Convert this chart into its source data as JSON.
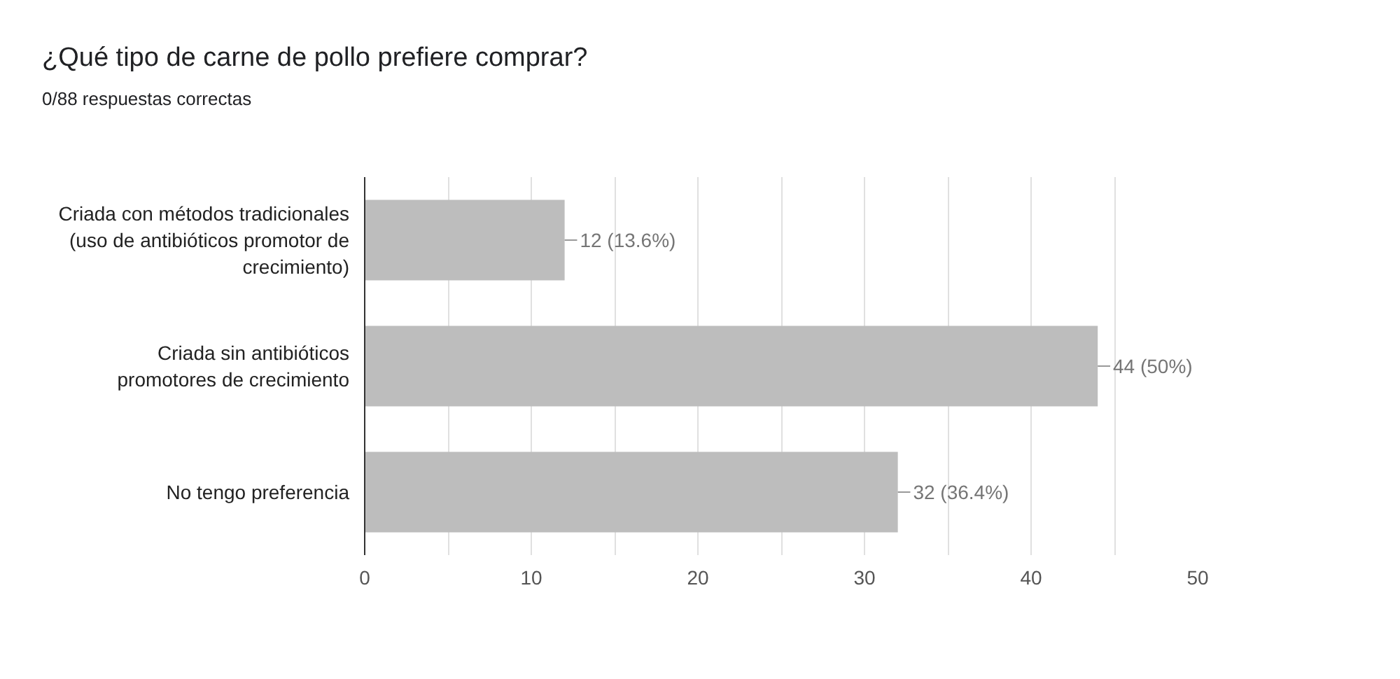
{
  "chart_data": {
    "type": "bar",
    "orientation": "horizontal",
    "title": "¿Qué tipo de carne de pollo prefiere comprar?",
    "subtitle": "0/88 respuestas correctas",
    "categories": [
      "Criada con métodos tradicionales (uso de antibióticos promotor de crecimiento)",
      "Criada sin antibióticos promotores de crecimiento",
      "No tengo preferencia"
    ],
    "values": [
      12,
      44,
      32
    ],
    "color": "#bdbdbd",
    "value_labels": [
      "12 (13.6%)",
      "44 (50%)",
      "32 (36.4%)"
    ],
    "xlim": [
      0,
      50
    ],
    "xticks": [
      0,
      {
        "value": 5,
        "label": null
      },
      10,
      {
        "value": 15,
        "label": null
      },
      20,
      {
        "value": 25,
        "label": null
      },
      30,
      {
        "value": 35,
        "label": null
      },
      40,
      {
        "value": 45,
        "label": null
      },
      50
    ],
    "grid": "x"
  }
}
